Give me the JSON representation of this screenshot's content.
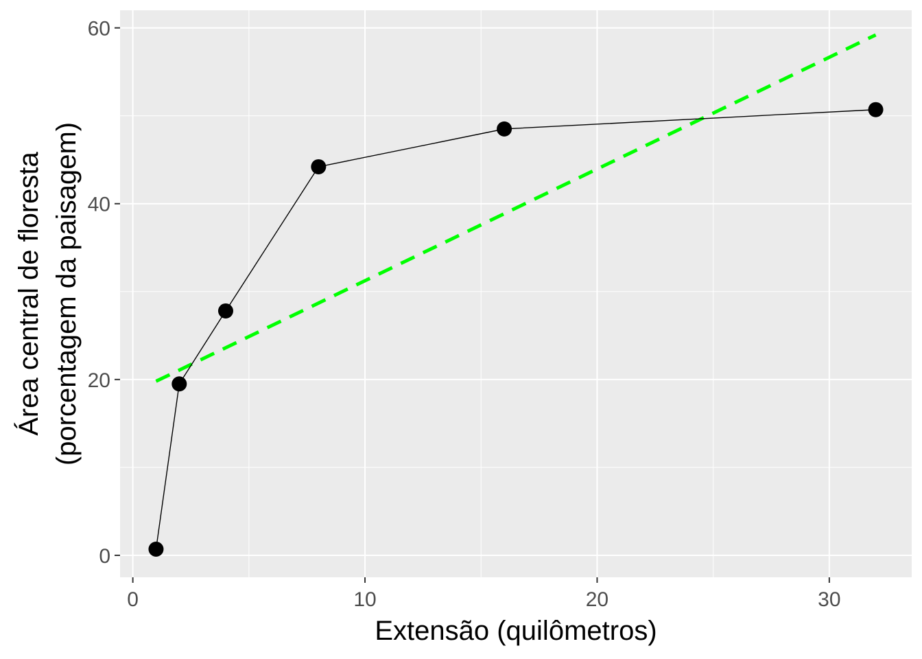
{
  "chart_data": {
    "type": "line",
    "title": "",
    "xlabel": "Extensão (quilômetros)",
    "ylabel_line1": "Área central de floresta",
    "ylabel_line2": "(porcentagem da paisagem)",
    "xlim": [
      -0.55,
      33.55
    ],
    "ylim": [
      -2.5,
      62.0
    ],
    "x_major_ticks": [
      0,
      10,
      20,
      30
    ],
    "x_minor_ticks": [
      5,
      15,
      25
    ],
    "y_major_ticks": [
      0,
      20,
      40,
      60
    ],
    "y_minor_ticks": [
      10,
      30,
      50
    ],
    "grid": true,
    "panel_background": "#ebebeb",
    "grid_color": "#ffffff",
    "series": [
      {
        "style": "solid-line-with-points",
        "color": "#000000",
        "x": [
          1,
          2,
          4,
          8,
          16,
          32
        ],
        "y": [
          0.7,
          19.5,
          27.8,
          44.2,
          48.5,
          50.7
        ]
      }
    ],
    "trend": {
      "style": "dashed",
      "color": "#00ff00",
      "x": [
        1,
        32
      ],
      "y": [
        19.8,
        59.2
      ]
    }
  }
}
